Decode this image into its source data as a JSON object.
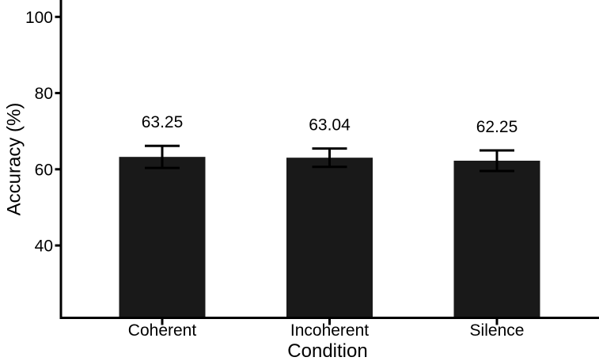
{
  "figure": {
    "background_color": "#ffffff",
    "text_color": "#000000"
  },
  "chart_data": {
    "type": "bar",
    "title": "",
    "xlabel": "Condition",
    "ylabel": "Accuracy (%)",
    "categories": [
      "Coherent",
      "Incoherent",
      "Silence"
    ],
    "values": [
      63.25,
      63.04,
      62.25
    ],
    "value_labels": [
      "63.25",
      "63.04",
      "62.25"
    ],
    "error_bars": [
      2.9,
      2.4,
      2.7
    ],
    "yticks": [
      40,
      60,
      80,
      100
    ],
    "ytick_labels": [
      "40",
      "60",
      "80",
      "100"
    ],
    "ylim": [
      21,
      104.3
    ],
    "grid": false,
    "legend": false,
    "bar_color": "#191919",
    "error_bar_color": "#000000",
    "axis_color": "#000000"
  }
}
